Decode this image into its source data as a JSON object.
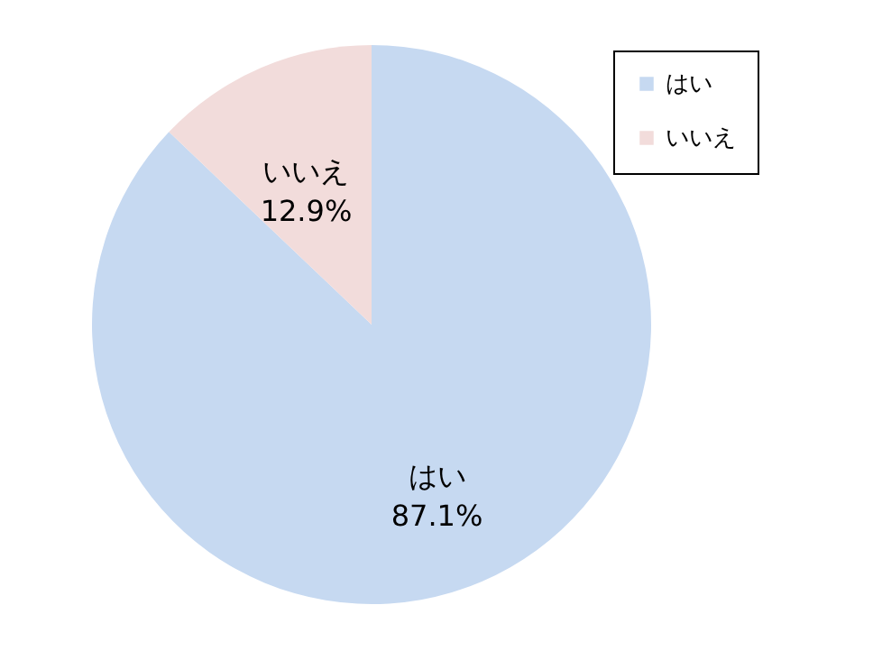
{
  "chart_data": {
    "type": "pie",
    "categories": [
      "はい",
      "いいえ"
    ],
    "values": [
      87.1,
      12.9
    ],
    "colors": [
      "#c6d9f1",
      "#f2dcdb"
    ],
    "value_labels": [
      "87.1%",
      "12.9%"
    ],
    "legend": "top right"
  }
}
